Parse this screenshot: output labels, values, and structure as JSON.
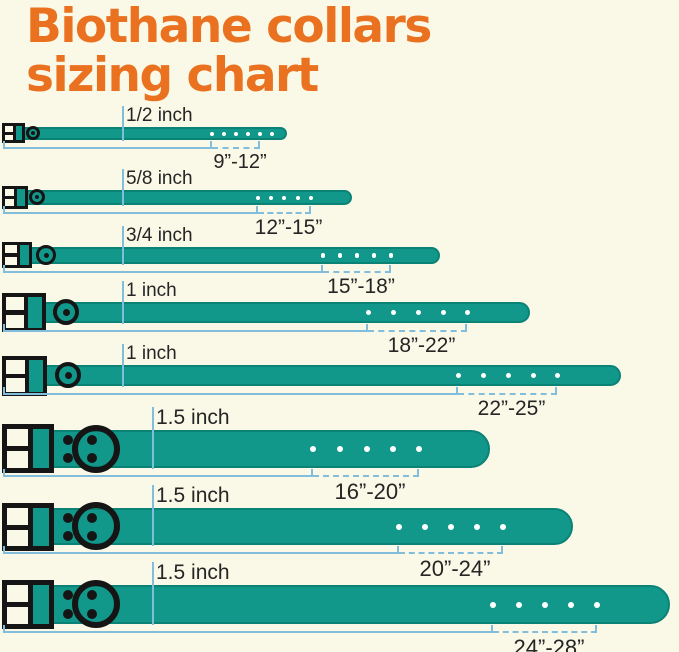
{
  "title": {
    "line1": "Biothane collars",
    "line2": "sizing chart"
  },
  "rows": [
    {
      "width_label": "1/2 inch",
      "size_range": "9”-12”",
      "hole_count": 6
    },
    {
      "width_label": "5/8 inch",
      "size_range": "12”-15”",
      "hole_count": 5
    },
    {
      "width_label": "3/4 inch",
      "size_range": "15”-18”",
      "hole_count": 5
    },
    {
      "width_label": "1 inch",
      "size_range": "18”-22”",
      "hole_count": 5
    },
    {
      "width_label": "1 inch",
      "size_range": "22”-25”",
      "hole_count": 5
    },
    {
      "width_label": "1.5 inch",
      "size_range": "16”-20”",
      "hole_count": 5
    },
    {
      "width_label": "1.5 inch",
      "size_range": "20”-24”",
      "hole_count": 5
    },
    {
      "width_label": "1.5 inch",
      "size_range": "24”-28”",
      "hole_count": 5
    }
  ],
  "colors": {
    "background": "#FAF9E7",
    "title": "#E9711F",
    "strap": "#12988B",
    "strap_edge": "#0B8276",
    "buckle": "#151515",
    "hole": "#FFFFFF",
    "guide": "#82BEDC",
    "text": "#252525"
  }
}
